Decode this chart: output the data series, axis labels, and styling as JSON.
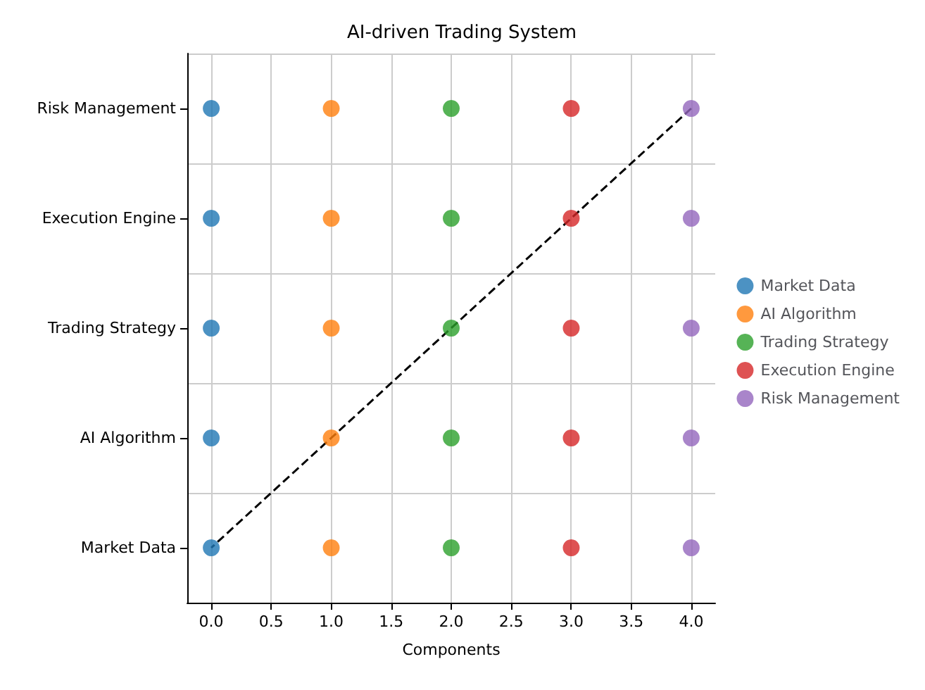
{
  "chart_data": {
    "type": "scatter",
    "orientation": "horizontal",
    "title": "AI-driven Trading System",
    "xlabel": "Components",
    "xlim": [
      -0.2,
      4.2
    ],
    "xticks": [
      {
        "value": 0,
        "label": "0.0"
      },
      {
        "value": 0.5,
        "label": "0.5"
      },
      {
        "value": 1,
        "label": "1.0"
      },
      {
        "value": 1.5,
        "label": "1.5"
      },
      {
        "value": 2,
        "label": "2.0"
      },
      {
        "value": 2.5,
        "label": "2.5"
      },
      {
        "value": 3,
        "label": "3.0"
      },
      {
        "value": 3.5,
        "label": "3.5"
      },
      {
        "value": 4,
        "label": "4.0"
      }
    ],
    "categories": [
      "Risk Management",
      "Execution Engine",
      "Trading Strategy",
      "AI Algorithm",
      "Market Data"
    ],
    "grid": true,
    "legend": "right",
    "marker": "circle",
    "series": [
      {
        "name": "Market Data",
        "color": "#1f77b4",
        "values": [
          0,
          0,
          0,
          0,
          0
        ]
      },
      {
        "name": "AI Algorithm",
        "color": "#ff7f0e",
        "values": [
          1,
          1,
          1,
          1,
          1
        ]
      },
      {
        "name": "Trading Strategy",
        "color": "#2ca02c",
        "values": [
          2,
          2,
          2,
          2,
          2
        ]
      },
      {
        "name": "Execution Engine",
        "color": "#d62728",
        "values": [
          3,
          3,
          3,
          3,
          3
        ]
      },
      {
        "name": "Risk Management",
        "color": "#9467bd",
        "values": [
          4,
          4,
          4,
          4,
          4
        ]
      },
      {
        "type": "line",
        "color": "#000000",
        "line_style": "dashed",
        "marker": "none",
        "values": [
          4,
          3,
          2,
          1,
          0
        ]
      }
    ]
  }
}
